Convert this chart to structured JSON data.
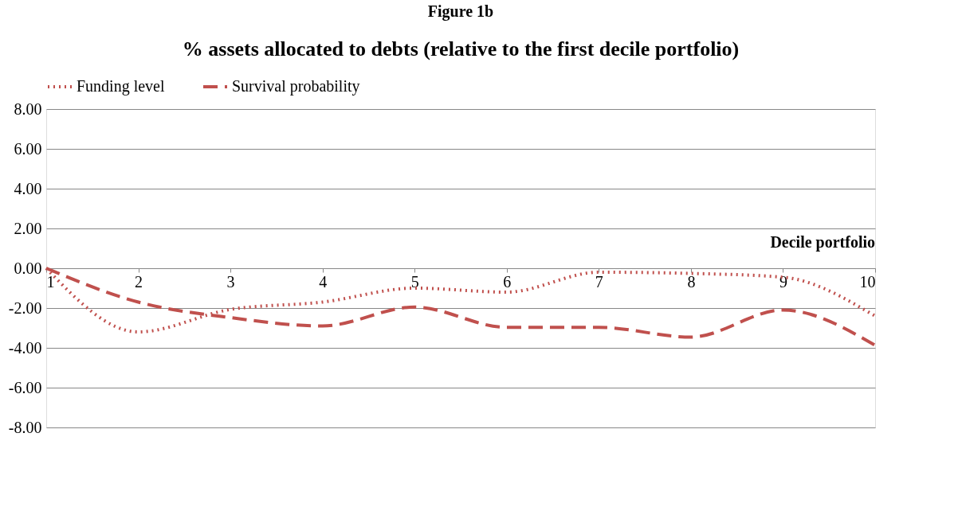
{
  "chart_data": {
    "type": "line",
    "title": "% assets allocated to debts (relative to the first decile portfolio)",
    "annotations": [
      "Figure 1b"
    ],
    "xlabel": "Decile portfolio",
    "categories": [
      "1",
      "2",
      "3",
      "4",
      "5",
      "6",
      "7",
      "8",
      "9",
      "10"
    ],
    "series": [
      {
        "name": "Funding level",
        "color": "#c0504d",
        "line_style": "dotted",
        "values": [
          0.0,
          -3.2,
          -2.07,
          -1.7,
          -1.0,
          -1.2,
          -0.2,
          -0.26,
          -0.45,
          -2.4
        ]
      },
      {
        "name": "Survival probability",
        "color": "#c0504d",
        "line_style": "dashed",
        "values": [
          0.0,
          -1.7,
          -2.48,
          -2.9,
          -1.95,
          -2.97,
          -2.97,
          -3.46,
          -2.1,
          -3.87
        ]
      }
    ],
    "ylim": [
      -8,
      8
    ],
    "yticks": [
      {
        "value": -8,
        "label": "-8.00"
      },
      {
        "value": -6,
        "label": "-6.00"
      },
      {
        "value": -4,
        "label": "-4.00"
      },
      {
        "value": -2,
        "label": "-2.00"
      },
      {
        "value": 0,
        "label": "0.00"
      },
      {
        "value": 2,
        "label": "2.00"
      },
      {
        "value": 4,
        "label": "4.00"
      },
      {
        "value": 6,
        "label": "6.00"
      },
      {
        "value": 8,
        "label": "8.00"
      }
    ],
    "grid": "y",
    "legend": "top"
  }
}
